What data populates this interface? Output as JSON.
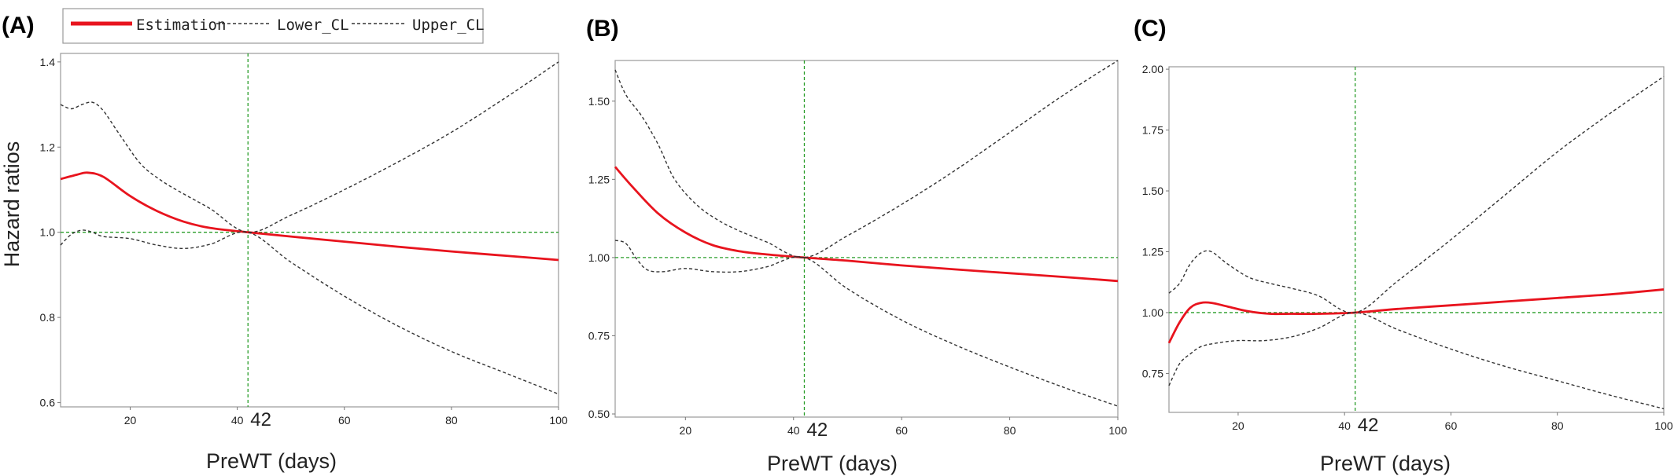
{
  "legend": {
    "items": [
      {
        "label": "Estimation",
        "color": "#e8141e",
        "style": "solid"
      },
      {
        "label": "Lower_CL",
        "color": "#333333",
        "style": "dashed"
      },
      {
        "label": "Upper_CL",
        "color": "#333333",
        "style": "dashed"
      }
    ]
  },
  "colors": {
    "estimate": "#e8141e",
    "ci": "#333333",
    "reference": "#2a9d2a"
  },
  "chart_data": [
    {
      "type": "line",
      "panel_label": "(A)",
      "xlabel": "PreWT (days)",
      "ylabel": "Hazard ratios",
      "xlim": [
        7,
        100
      ],
      "ylim": [
        0.59,
        1.42
      ],
      "xticks": [
        20,
        40,
        60,
        80,
        100
      ],
      "yticks": [
        0.6,
        0.8,
        1.0,
        1.2,
        1.4
      ],
      "ytick_labels": [
        "0.6",
        "0.8",
        "1.0",
        "1.2",
        "1.4"
      ],
      "reference_x": 42,
      "reference_y": 1.0,
      "reference_x_label": "42",
      "series": [
        {
          "name": "Estimation",
          "x": [
            7,
            10,
            12,
            15,
            20,
            25,
            30,
            35,
            42,
            50,
            60,
            70,
            80,
            90,
            100
          ],
          "y": [
            1.125,
            1.135,
            1.14,
            1.13,
            1.085,
            1.05,
            1.025,
            1.01,
            1.0,
            0.99,
            0.978,
            0.966,
            0.955,
            0.945,
            0.935
          ]
        },
        {
          "name": "Upper_CL",
          "x": [
            7,
            9,
            11,
            13,
            15,
            18,
            22,
            26,
            30,
            35,
            42,
            50,
            60,
            70,
            80,
            90,
            100
          ],
          "y": [
            1.3,
            1.29,
            1.3,
            1.305,
            1.285,
            1.23,
            1.16,
            1.12,
            1.09,
            1.055,
            1.0,
            1.04,
            1.1,
            1.165,
            1.235,
            1.315,
            1.4
          ]
        },
        {
          "name": "Lower_CL",
          "x": [
            7,
            9,
            11,
            13,
            15,
            20,
            25,
            30,
            35,
            42,
            50,
            60,
            70,
            80,
            90,
            100
          ],
          "y": [
            0.97,
            0.995,
            1.005,
            1.0,
            0.99,
            0.985,
            0.97,
            0.962,
            0.972,
            1.0,
            0.93,
            0.85,
            0.78,
            0.72,
            0.67,
            0.62
          ]
        }
      ]
    },
    {
      "type": "line",
      "panel_label": "(B)",
      "xlabel": "PreWT (days)",
      "ylabel": "",
      "xlim": [
        7,
        100
      ],
      "ylim": [
        0.49,
        1.63
      ],
      "xticks": [
        20,
        40,
        60,
        80,
        100
      ],
      "yticks": [
        0.5,
        0.75,
        1.0,
        1.25,
        1.5
      ],
      "ytick_labels": [
        "0.50",
        "0.75",
        "1.00",
        "1.25",
        "1.50"
      ],
      "reference_x": 42,
      "reference_y": 1.0,
      "reference_x_label": "42",
      "series": [
        {
          "name": "Estimation",
          "x": [
            7,
            10,
            15,
            20,
            25,
            30,
            35,
            42,
            50,
            60,
            70,
            80,
            90,
            100
          ],
          "y": [
            1.29,
            1.23,
            1.14,
            1.08,
            1.04,
            1.02,
            1.01,
            1.0,
            0.99,
            0.975,
            0.962,
            0.95,
            0.938,
            0.925
          ]
        },
        {
          "name": "Upper_CL",
          "x": [
            7,
            9,
            12,
            15,
            18,
            22,
            26,
            30,
            35,
            42,
            50,
            60,
            70,
            80,
            90,
            100
          ],
          "y": [
            1.6,
            1.52,
            1.45,
            1.36,
            1.25,
            1.17,
            1.12,
            1.085,
            1.05,
            1.0,
            1.07,
            1.17,
            1.28,
            1.4,
            1.52,
            1.63
          ]
        },
        {
          "name": "Lower_CL",
          "x": [
            7,
            9,
            11,
            13,
            16,
            20,
            25,
            30,
            35,
            42,
            50,
            60,
            70,
            80,
            90,
            100
          ],
          "y": [
            1.055,
            1.045,
            0.995,
            0.96,
            0.955,
            0.965,
            0.955,
            0.955,
            0.97,
            1.0,
            0.9,
            0.8,
            0.72,
            0.65,
            0.585,
            0.525
          ]
        }
      ]
    },
    {
      "type": "line",
      "panel_label": "(C)",
      "xlabel": "PreWT (days)",
      "ylabel": "",
      "xlim": [
        7,
        100
      ],
      "ylim": [
        0.59,
        2.01
      ],
      "xticks": [
        20,
        40,
        60,
        80,
        100
      ],
      "yticks": [
        0.75,
        1.0,
        1.25,
        1.5,
        1.75,
        2.0
      ],
      "ytick_labels": [
        "0.75",
        "1.00",
        "1.25",
        "1.50",
        "1.75",
        "2.00"
      ],
      "reference_x": 42,
      "reference_y": 1.0,
      "reference_x_label": "42",
      "series": [
        {
          "name": "Estimation",
          "x": [
            7,
            9,
            11,
            13,
            15,
            18,
            22,
            26,
            30,
            35,
            42,
            50,
            60,
            70,
            80,
            90,
            100
          ],
          "y": [
            0.875,
            0.96,
            1.02,
            1.04,
            1.04,
            1.025,
            1.005,
            0.995,
            0.995,
            0.995,
            1.0,
            1.015,
            1.03,
            1.045,
            1.06,
            1.075,
            1.095
          ]
        },
        {
          "name": "Upper_CL",
          "x": [
            7,
            9,
            11,
            13,
            15,
            18,
            22,
            26,
            30,
            35,
            42,
            50,
            60,
            70,
            80,
            90,
            100
          ],
          "y": [
            1.08,
            1.12,
            1.2,
            1.245,
            1.25,
            1.2,
            1.145,
            1.12,
            1.1,
            1.07,
            1.0,
            1.13,
            1.3,
            1.48,
            1.66,
            1.82,
            1.97
          ]
        },
        {
          "name": "Lower_CL",
          "x": [
            7,
            9,
            11,
            13,
            16,
            20,
            25,
            30,
            35,
            42,
            50,
            60,
            70,
            80,
            90,
            100
          ],
          "y": [
            0.7,
            0.79,
            0.83,
            0.86,
            0.875,
            0.885,
            0.885,
            0.9,
            0.935,
            1.0,
            0.93,
            0.85,
            0.78,
            0.72,
            0.66,
            0.605
          ]
        }
      ]
    }
  ]
}
